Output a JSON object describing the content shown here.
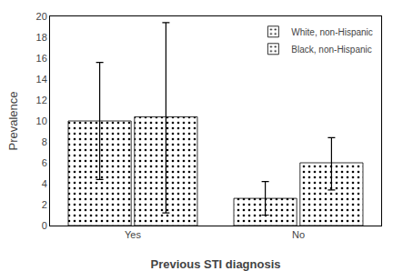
{
  "chart_data": {
    "type": "bar",
    "xlabel": "Previous STI diagnosis",
    "ylabel": "Prevalence",
    "categories": [
      "Yes",
      "No"
    ],
    "series": [
      {
        "name": "White, non-Hispanic",
        "color": "#4472C4",
        "values": [
          10.0,
          2.6
        ],
        "error_low": [
          5.6,
          1.6
        ],
        "error_high": [
          5.6,
          1.6
        ]
      },
      {
        "name": "Black, non-Hispanic",
        "color": "#9DC3E6",
        "values": [
          10.4,
          6.0
        ],
        "error_low": [
          9.2,
          2.6
        ],
        "error_high": [
          9.0,
          2.4
        ]
      }
    ],
    "ylim": [
      0,
      20
    ],
    "yticks": [
      0,
      2,
      4,
      6,
      8,
      10,
      12,
      14,
      16,
      18,
      20
    ],
    "grid": false,
    "legend": "upper right"
  }
}
